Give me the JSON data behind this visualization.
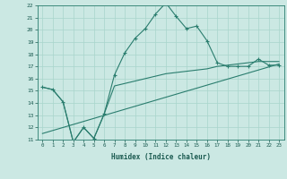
{
  "xlabel": "Humidex (Indice chaleur)",
  "xlim": [
    -0.5,
    23.5
  ],
  "ylim": [
    11,
    22
  ],
  "xticks": [
    0,
    1,
    2,
    3,
    4,
    5,
    6,
    7,
    8,
    9,
    10,
    11,
    12,
    13,
    14,
    15,
    16,
    17,
    18,
    19,
    20,
    21,
    22,
    23
  ],
  "yticks": [
    11,
    12,
    13,
    14,
    15,
    16,
    17,
    18,
    19,
    20,
    21,
    22
  ],
  "bg_color": "#cbe8e3",
  "grid_color": "#a8d5cc",
  "line_color": "#2a7d6e",
  "series1_x": [
    0,
    1,
    2,
    3,
    4,
    5,
    6,
    7,
    8,
    9,
    10,
    11,
    12,
    13,
    14,
    15,
    16,
    17,
    18,
    19,
    20,
    21,
    22,
    23
  ],
  "series1_y": [
    15.3,
    15.1,
    14.1,
    10.8,
    12.0,
    11.1,
    13.1,
    16.3,
    18.1,
    19.3,
    20.1,
    21.3,
    22.2,
    21.1,
    20.1,
    20.3,
    19.1,
    17.3,
    17.0,
    17.0,
    17.0,
    17.6,
    17.1,
    17.1
  ],
  "series2_x": [
    0,
    1,
    2,
    3,
    4,
    5,
    6,
    7,
    8,
    9,
    10,
    11,
    12,
    13,
    14,
    15,
    16,
    17,
    18,
    19,
    20,
    21,
    22,
    23
  ],
  "series2_y": [
    15.3,
    15.1,
    14.1,
    10.8,
    12.0,
    11.1,
    13.1,
    15.4,
    15.6,
    15.8,
    16.0,
    16.2,
    16.4,
    16.5,
    16.6,
    16.7,
    16.8,
    17.0,
    17.1,
    17.2,
    17.3,
    17.4,
    17.4,
    17.4
  ],
  "series3_x": [
    0,
    23
  ],
  "series3_y": [
    11.5,
    17.2
  ]
}
